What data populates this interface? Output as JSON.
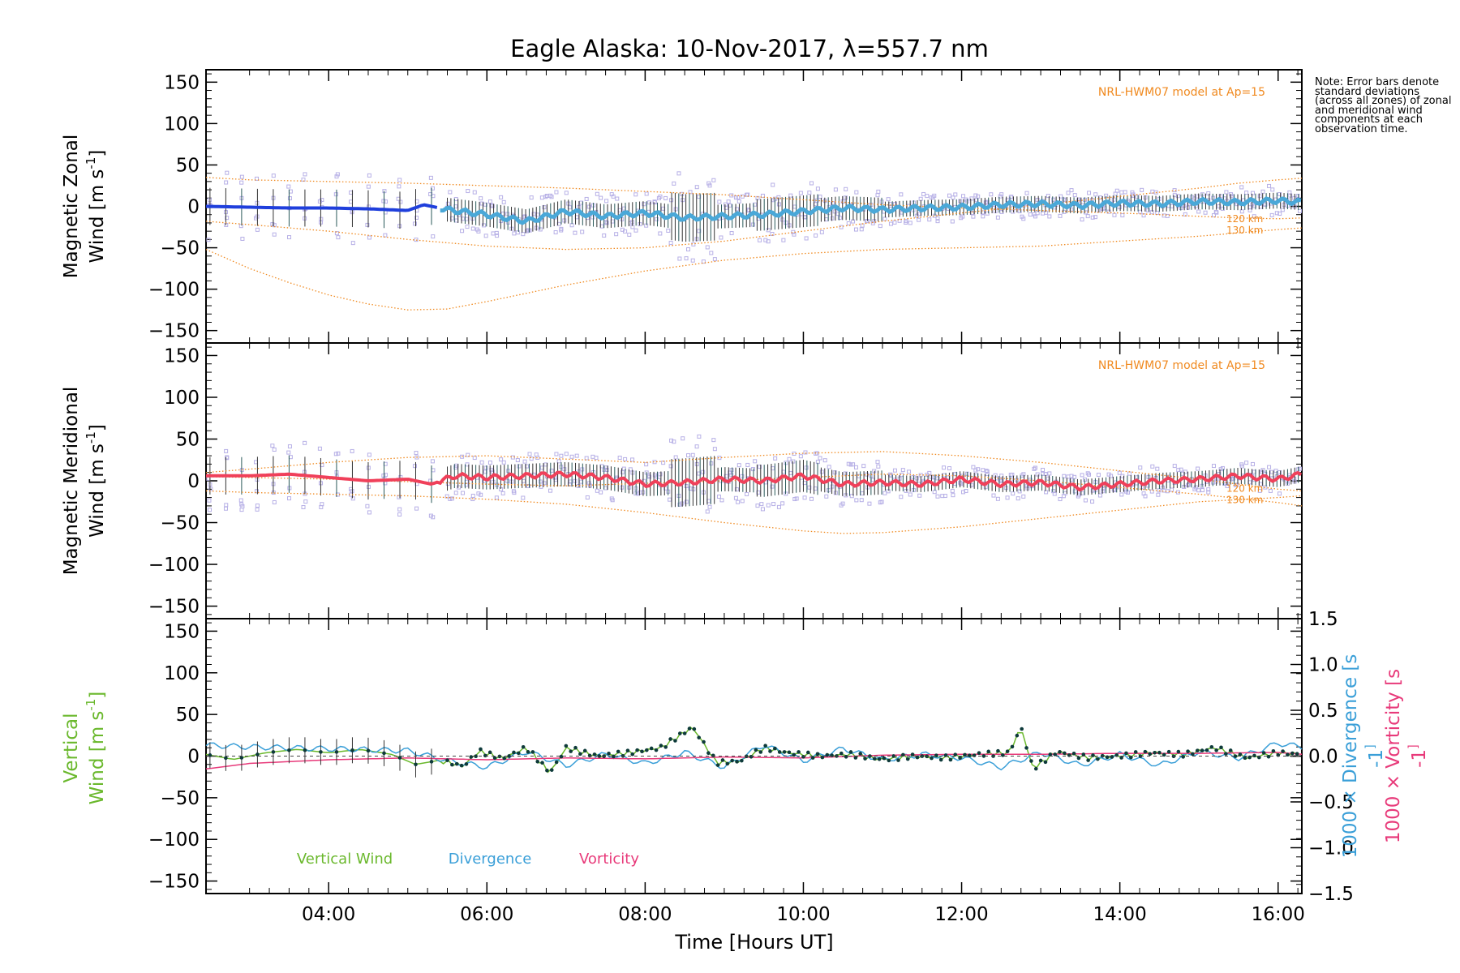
{
  "chart_data": [
    {
      "type": "scatter",
      "title": "Eagle Alaska: 10-Nov-2017, λ=557.7 nm",
      "ylabel": [
        "Magnetic Zonal",
        "Wind [m s",
        "-1",
        "]"
      ],
      "ylim": [
        -165,
        165
      ],
      "yticks": [
        "150",
        "100",
        "50",
        "0",
        "−50",
        "−100",
        "−150"
      ],
      "xlim_hours": [
        2.45,
        16.3
      ],
      "model_label": "NRL-HWM07 model at Ap=15",
      "model_alt_labels": [
        "120 km",
        "130 km"
      ],
      "series": [
        {
          "name": "NRL-HWM07 model",
          "x": [
            2.45,
            3,
            3.5,
            4,
            4.5,
            5,
            5.5,
            6,
            7,
            8,
            9,
            10,
            11,
            12,
            13,
            14,
            15,
            15.5,
            16,
            16.3
          ],
          "values": [
            -52,
            -75,
            -92,
            -107,
            -118,
            -125,
            -124,
            -115,
            -95,
            -78,
            -65,
            -57,
            -52,
            -50,
            -48,
            -42,
            -36,
            -32,
            -28,
            -26
          ]
        },
        {
          "name": "NRL-HWM07 model 120 km",
          "x": [
            2.45,
            3,
            4,
            5,
            6,
            7,
            8,
            9,
            10,
            11,
            12,
            13,
            14,
            15,
            15.5,
            16,
            16.3
          ],
          "values": [
            35,
            32,
            30,
            28,
            25,
            22,
            18,
            14,
            8,
            2,
            -2,
            -5,
            -8,
            -12,
            -14,
            -15,
            -14
          ]
        },
        {
          "name": "NRL-HWM07 model 130 km",
          "x": [
            2.45,
            3,
            4,
            5,
            6,
            7,
            8,
            9,
            10,
            11,
            12,
            13,
            14,
            15,
            15.5,
            16,
            16.3
          ],
          "values": [
            -18,
            -22,
            -30,
            -40,
            -48,
            -52,
            -50,
            -42,
            -30,
            -18,
            -8,
            2,
            12,
            22,
            28,
            32,
            34
          ]
        },
        {
          "name": "Zonal wind mean",
          "x": [
            2.45,
            3.0,
            3.5,
            4.0,
            4.5,
            5.0,
            5.2,
            5.5,
            6.0,
            6.5,
            7.0,
            7.5,
            8.0,
            8.5,
            9.0,
            9.5,
            10.0,
            10.5,
            11.0,
            11.5,
            12.0,
            12.5,
            13.0,
            13.5,
            14.0,
            14.5,
            15.0,
            15.5,
            16.0,
            16.3
          ],
          "values": [
            0,
            -1,
            -2,
            -2,
            -3,
            -5,
            2,
            -4,
            -10,
            -18,
            -6,
            -12,
            -8,
            -14,
            -12,
            -10,
            -6,
            -2,
            -4,
            -2,
            -1,
            2,
            3,
            1,
            4,
            3,
            6,
            5,
            7,
            5
          ]
        }
      ]
    },
    {
      "type": "scatter",
      "ylabel": [
        "Magnetic Meridional",
        "Wind [m s",
        "-1",
        "]"
      ],
      "ylim": [
        -165,
        165
      ],
      "yticks": [
        "150",
        "100",
        "50",
        "0",
        "−50",
        "−100",
        "−150"
      ],
      "xlim_hours": [
        2.45,
        16.3
      ],
      "model_label": "NRL-HWM07 model at Ap=15",
      "model_alt_labels": [
        "120 km",
        "130 km"
      ],
      "series": [
        {
          "name": "NRL-HWM07 model",
          "x": [
            2.45,
            3,
            4,
            5,
            6,
            7,
            8,
            9,
            10,
            10.5,
            11,
            12,
            13,
            14,
            15,
            16,
            16.3
          ],
          "values": [
            -12,
            -14,
            -16,
            -18,
            -22,
            -28,
            -38,
            -50,
            -60,
            -63,
            -62,
            -55,
            -45,
            -35,
            -25,
            -20,
            -18
          ]
        },
        {
          "name": "NRL-HWM07 model 120 km",
          "x": [
            2.45,
            3,
            4,
            5,
            6,
            7,
            8,
            9,
            10,
            11,
            12,
            13,
            14,
            15,
            16,
            16.3
          ],
          "values": [
            10,
            14,
            22,
            28,
            30,
            26,
            22,
            28,
            33,
            35,
            30,
            22,
            12,
            2,
            -10,
            -12
          ]
        },
        {
          "name": "NRL-HWM07 model 130 km",
          "x": [
            2.45,
            3,
            4,
            5,
            6,
            7,
            8,
            9,
            10,
            11,
            12,
            13,
            14,
            15,
            16,
            16.3
          ],
          "values": [
            5,
            4,
            2,
            -1,
            -4,
            -6,
            -3,
            0,
            4,
            8,
            6,
            0,
            -8,
            -16,
            -26,
            -30
          ]
        },
        {
          "name": "Meridional wind mean",
          "x": [
            2.45,
            3.0,
            3.5,
            4.0,
            4.5,
            5.0,
            5.3,
            5.6,
            6.0,
            6.5,
            7.0,
            7.5,
            8.0,
            8.5,
            9.0,
            9.5,
            10.0,
            10.5,
            11.0,
            11.5,
            12.0,
            12.5,
            13.0,
            13.5,
            14.0,
            14.5,
            15.0,
            15.5,
            16.0,
            16.3
          ],
          "values": [
            6,
            6,
            8,
            4,
            0,
            2,
            -4,
            6,
            4,
            6,
            8,
            4,
            -4,
            -2,
            2,
            0,
            6,
            -4,
            -2,
            -4,
            2,
            -4,
            -2,
            -8,
            -4,
            0,
            2,
            6,
            2,
            8
          ]
        }
      ]
    },
    {
      "type": "line",
      "ylabel": [
        "Vertical",
        "Wind [m s",
        "-1",
        "]"
      ],
      "ylim": [
        -165,
        165
      ],
      "yticks": [
        "150",
        "100",
        "50",
        "0",
        "−50",
        "−100",
        "−150"
      ],
      "y2lim": [
        -1.5,
        1.5
      ],
      "y2ticks": [
        "1.5",
        "1.0",
        "0.5",
        "0.0",
        "−0.5",
        "−1.0",
        "−1.5"
      ],
      "y2label": [
        "1000 × Divergence [s",
        "-1",
        "]"
      ],
      "y3label": [
        "1000 × Vorticity [s",
        "-1",
        "]"
      ],
      "xlabel": "Time [Hours UT]",
      "xlim_hours": [
        2.45,
        16.3
      ],
      "xticks": [
        "04:00",
        "06:00",
        "08:00",
        "10:00",
        "12:00",
        "14:00",
        "16:00"
      ],
      "legend": [
        "Vertical Wind",
        "Divergence",
        "Vorticity"
      ],
      "series": [
        {
          "name": "Vertical Wind",
          "x": [
            2.45,
            2.8,
            3.2,
            3.6,
            4.0,
            4.4,
            4.8,
            5.1,
            5.4,
            5.7,
            5.9,
            6.2,
            6.5,
            6.8,
            7.0,
            7.4,
            7.8,
            8.2,
            8.6,
            8.9,
            9.2,
            9.5,
            9.8,
            10.2,
            10.6,
            11.0,
            11.4,
            11.8,
            12.2,
            12.6,
            12.75,
            12.9,
            13.2,
            13.6,
            14.0,
            14.4,
            14.8,
            15.2,
            15.6,
            16.0,
            16.3
          ],
          "values": [
            2,
            -4,
            4,
            8,
            4,
            8,
            2,
            -10,
            -5,
            -12,
            6,
            -3,
            10,
            -20,
            10,
            0,
            4,
            10,
            35,
            -8,
            -6,
            10,
            4,
            0,
            2,
            -4,
            0,
            -2,
            2,
            4,
            35,
            -15,
            5,
            -2,
            0,
            4,
            2,
            10,
            -2,
            4,
            2
          ]
        },
        {
          "name": "Divergence",
          "x": [
            2.45,
            3.0,
            4.0,
            5.0,
            5.5,
            6.0,
            6.5,
            7.0,
            7.5,
            8.0,
            8.5,
            9.0,
            9.5,
            10.0,
            10.5,
            11.0,
            11.5,
            12.0,
            12.5,
            13.0,
            13.5,
            14.0,
            14.5,
            15.0,
            15.5,
            16.0,
            16.3
          ],
          "values": [
            0.12,
            0.1,
            0.08,
            0.06,
            -0.05,
            -0.12,
            0.05,
            -0.1,
            0.02,
            -0.08,
            0.04,
            -0.12,
            0.12,
            -0.05,
            0.08,
            -0.04,
            0.02,
            -0.02,
            -0.12,
            0.04,
            -0.1,
            0.02,
            -0.1,
            0.05,
            -0.02,
            0.14,
            0.1
          ]
        },
        {
          "name": "Vorticity",
          "x": [
            2.45,
            3.0,
            4.0,
            5.0,
            6.0,
            7.0,
            8.0,
            9.0,
            10.0,
            11.0,
            12.0,
            13.0,
            14.0,
            15.0,
            16.0,
            16.3
          ],
          "values": [
            -0.14,
            -0.08,
            -0.04,
            -0.02,
            -0.04,
            -0.02,
            -0.03,
            -0.01,
            -0.02,
            0.01,
            0.02,
            0.02,
            0.03,
            0.03,
            0.04,
            0.02
          ]
        }
      ]
    }
  ],
  "note": "Note: Error bars denote standard deviations (across all zones) of zonal and meridional wind components at each observation time.",
  "colors": {
    "zonal_mean_early": "#1f3fdc",
    "zonal_mean": "#4aa8d8",
    "meridional_mean": "#f0405a",
    "model": "#f08a20",
    "scatter": "#b7b0e6",
    "vertical": "#6ab82c",
    "divergence": "#3a9fd8",
    "vorticity": "#e83a7a"
  }
}
